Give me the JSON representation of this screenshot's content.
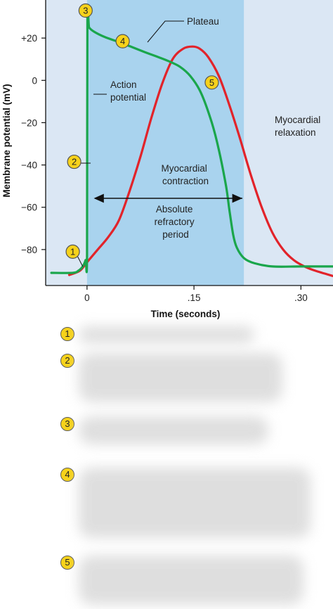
{
  "chart_data": {
    "type": "line",
    "xlabel": "Time (seconds)",
    "ylabel": "Membrane potential (mV)",
    "xlim": [
      -0.058,
      0.345
    ],
    "ylim": [
      -97,
      38
    ],
    "x_ticks": [
      {
        "v": 0,
        "label": "0"
      },
      {
        "v": 0.15,
        "label": ".15"
      },
      {
        "v": 0.3,
        "label": ".30"
      }
    ],
    "y_ticks": [
      {
        "v": 20,
        "label": "+20"
      },
      {
        "v": 0,
        "label": "0"
      },
      {
        "v": -20,
        "label": "−20"
      },
      {
        "v": -40,
        "label": "−40"
      },
      {
        "v": -60,
        "label": "−60"
      },
      {
        "v": -80,
        "label": "−80"
      }
    ],
    "refractory_period": [
      0,
      0.22
    ],
    "series": [
      {
        "id": "action-potential",
        "color": "#1aa64b",
        "x": [
          -0.05,
          -0.02,
          -0.012,
          -0.006,
          -0.002,
          0,
          0.0005,
          0.003,
          0.01,
          0.025,
          0.05,
          0.08,
          0.1,
          0.115,
          0.13,
          0.145,
          0.16,
          0.175,
          0.185,
          0.195,
          0.2,
          0.205,
          0.21,
          0.22,
          0.235,
          0.26,
          0.3,
          0.345
        ],
        "y": [
          -91,
          -91,
          -90,
          -88,
          -85,
          -82,
          28,
          25,
          23,
          20.5,
          17.5,
          13.5,
          11,
          9,
          6.5,
          2,
          -6,
          -20,
          -33,
          -50,
          -62,
          -73,
          -79,
          -84,
          -86.5,
          -88,
          -88,
          -88
        ]
      },
      {
        "id": "contraction",
        "color": "#e2232a",
        "x": [
          -0.025,
          -0.01,
          0,
          0.015,
          0.03,
          0.045,
          0.06,
          0.075,
          0.09,
          0.105,
          0.12,
          0.135,
          0.148,
          0.158,
          0.17,
          0.185,
          0.2,
          0.215,
          0.23,
          0.245,
          0.26,
          0.275,
          0.29,
          0.305,
          0.32,
          0.345
        ],
        "y": [
          -92,
          -90,
          -86,
          -80,
          -74,
          -66,
          -52,
          -36,
          -18,
          -2,
          10,
          15,
          16,
          15,
          11,
          2,
          -12,
          -28,
          -45,
          -60,
          -72,
          -80,
          -85,
          -88,
          -90,
          -92.5
        ]
      }
    ],
    "annotations": [
      {
        "id": "plateau",
        "text": "Plateau"
      },
      {
        "id": "action-potential",
        "lines": [
          "Action",
          "potential"
        ]
      },
      {
        "id": "myocardial-relaxation",
        "lines": [
          "Myocardial",
          "relaxation"
        ]
      },
      {
        "id": "myocardial-contraction",
        "lines": [
          "Myocardial",
          "contraction"
        ]
      },
      {
        "id": "absolute-refractory-period",
        "lines": [
          "Absolute",
          "refractory",
          "period"
        ]
      }
    ],
    "markers": [
      {
        "label": "1",
        "x": -0.02,
        "y": -81
      },
      {
        "label": "2",
        "x": -0.018,
        "y": -38.5
      },
      {
        "label": "3",
        "x": -0.002,
        "y": 33
      },
      {
        "label": "4",
        "x": 0.05,
        "y": 18.5
      },
      {
        "label": "5",
        "x": 0.175,
        "y": -1
      }
    ]
  },
  "answer_badges": [
    "1",
    "2",
    "3",
    "4",
    "5"
  ],
  "colors": {
    "refractory": "#a9d3ee",
    "outside": "#dbe7f4",
    "badge": "#f6d21b"
  }
}
